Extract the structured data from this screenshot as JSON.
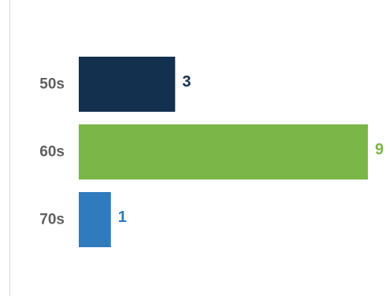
{
  "chart_data": {
    "type": "bar",
    "orientation": "horizontal",
    "title": "",
    "xlabel": "",
    "ylabel": "",
    "categories": [
      "50s",
      "60s",
      "70s"
    ],
    "values": [
      3,
      9,
      1
    ],
    "value_labels": [
      "3",
      "9",
      "1"
    ],
    "colors": [
      "#14304f",
      "#7ab648",
      "#2f7bbd"
    ],
    "xlim": [
      0,
      9
    ],
    "grid": false,
    "legend": "none",
    "axis_line_color": "#d9d9d9",
    "label_color": "#5f5f5f"
  }
}
